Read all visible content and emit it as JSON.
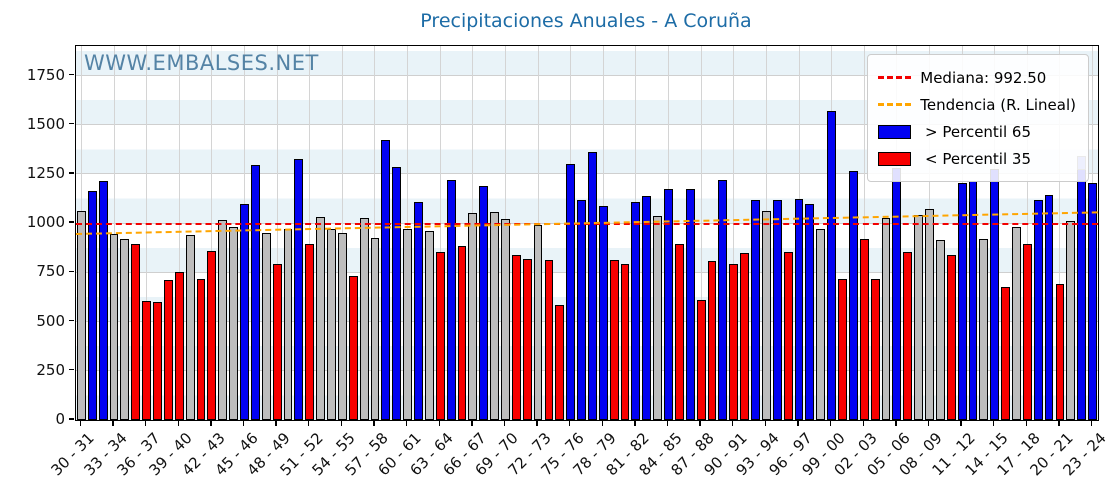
{
  "title": "Precipitaciones Anuales - A Coruña",
  "watermark": "WWW.EMBALSES.NET",
  "legend": {
    "median_label": "Mediana: 992.50",
    "trend_label": "Tendencia (R. Lineal)",
    "above_label": " > Percentil 65",
    "below_label": " < Percentil 35"
  },
  "chart_data": {
    "type": "bar",
    "title": "Precipitaciones Anuales - A Coruña",
    "ylabel": "",
    "xlabel": "",
    "ylim": [
      0,
      1900
    ],
    "yticks": [
      0,
      250,
      500,
      750,
      1000,
      1250,
      1500,
      1750
    ],
    "x_tick_label_step": 3,
    "grid": true,
    "legend_position": "top-right",
    "median": 992.5,
    "trend_linear": {
      "start_value": 940,
      "end_value": 1050
    },
    "colors": {
      "above": "#0202f2",
      "below": "#f80000",
      "mid": "#bdbdbd",
      "median_line": "#f20000",
      "trend_line": "#ffa500",
      "partial_cap": "#6b79e8",
      "title": "#1d6ca6",
      "watermark": "#3a6e96"
    },
    "series_legend": {
      "above": "> Percentil 65",
      "below": "< Percentil 35"
    },
    "partial_bar": {
      "label": "22 - 23",
      "solid_to": 1275
    },
    "bars": [
      [
        "30 - 31",
        1060,
        "mid"
      ],
      [
        "31 - 32",
        1165,
        "above"
      ],
      [
        "32 - 33",
        1215,
        "above"
      ],
      [
        "33 - 34",
        945,
        "mid"
      ],
      [
        "34 - 35",
        920,
        "mid"
      ],
      [
        "35 - 36",
        895,
        "below"
      ],
      [
        "36 - 37",
        605,
        "below"
      ],
      [
        "37 - 38",
        600,
        "below"
      ],
      [
        "38 - 39",
        710,
        "below"
      ],
      [
        "39 - 40",
        750,
        "below"
      ],
      [
        "40 - 41",
        940,
        "mid"
      ],
      [
        "41 - 42",
        715,
        "below"
      ],
      [
        "42 - 43",
        860,
        "below"
      ],
      [
        "43 - 44",
        1015,
        "mid"
      ],
      [
        "44 - 45",
        980,
        "mid"
      ],
      [
        "45 - 46",
        1095,
        "above"
      ],
      [
        "46 - 47",
        1295,
        "above"
      ],
      [
        "47 - 48",
        950,
        "mid"
      ],
      [
        "48 - 49",
        790,
        "below"
      ],
      [
        "49 - 50",
        970,
        "mid"
      ],
      [
        "50 - 51",
        1325,
        "above"
      ],
      [
        "51 - 52",
        895,
        "below"
      ],
      [
        "52 - 53",
        1030,
        "mid"
      ],
      [
        "53 - 54",
        970,
        "mid"
      ],
      [
        "54 - 55",
        950,
        "mid"
      ],
      [
        "55 - 56",
        730,
        "below"
      ],
      [
        "56 - 57",
        1025,
        "mid"
      ],
      [
        "57 - 58",
        925,
        "mid"
      ],
      [
        "58 - 59",
        1425,
        "above"
      ],
      [
        "59 - 60",
        1285,
        "above"
      ],
      [
        "60 - 61",
        970,
        "mid"
      ],
      [
        "61 - 62",
        1110,
        "above"
      ],
      [
        "62 - 63",
        960,
        "mid"
      ],
      [
        "63 - 64",
        855,
        "below"
      ],
      [
        "64 - 65",
        1220,
        "above"
      ],
      [
        "65 - 66",
        885,
        "below"
      ],
      [
        "66 - 67",
        1050,
        "mid"
      ],
      [
        "67 - 68",
        1190,
        "above"
      ],
      [
        "68 - 69",
        1055,
        "mid"
      ],
      [
        "69 - 70",
        1020,
        "mid"
      ],
      [
        "70 - 71",
        840,
        "below"
      ],
      [
        "71 - 72",
        820,
        "below"
      ],
      [
        "72 - 73",
        990,
        "mid"
      ],
      [
        "73 - 74",
        815,
        "below"
      ],
      [
        "74 - 75",
        585,
        "below"
      ],
      [
        "75 - 76",
        1300,
        "above"
      ],
      [
        "76 - 77",
        1120,
        "above"
      ],
      [
        "77 - 78",
        1360,
        "above"
      ],
      [
        "78 - 79",
        1085,
        "above"
      ],
      [
        "79 - 80",
        815,
        "below"
      ],
      [
        "80 - 81",
        795,
        "below"
      ],
      [
        "81 - 82",
        1110,
        "above"
      ],
      [
        "82 - 83",
        1140,
        "above"
      ],
      [
        "83 - 84",
        1035,
        "mid"
      ],
      [
        "84 - 85",
        1175,
        "above"
      ],
      [
        "85 - 86",
        895,
        "below"
      ],
      [
        "86 - 87",
        1175,
        "above"
      ],
      [
        "87 - 88",
        610,
        "below"
      ],
      [
        "88 - 89",
        810,
        "below"
      ],
      [
        "89 - 90",
        1220,
        "above"
      ],
      [
        "90 - 91",
        790,
        "below"
      ],
      [
        "91 - 92",
        850,
        "below"
      ],
      [
        "92 - 93",
        1120,
        "above"
      ],
      [
        "93 - 94",
        1060,
        "mid"
      ],
      [
        "94 - 95",
        1120,
        "above"
      ],
      [
        "95 - 96",
        855,
        "below"
      ],
      [
        "96 - 97",
        1125,
        "above"
      ],
      [
        "97 - 98",
        1095,
        "above"
      ],
      [
        "98 - 99",
        970,
        "mid"
      ],
      [
        "99 - 00",
        1570,
        "above"
      ],
      [
        "00 - 01",
        715,
        "below"
      ],
      [
        "01 - 02",
        1265,
        "above"
      ],
      [
        "02 - 03",
        920,
        "below"
      ],
      [
        "03 - 04",
        715,
        "below"
      ],
      [
        "04 - 05",
        1025,
        "mid"
      ],
      [
        "05 - 06",
        1280,
        "above"
      ],
      [
        "06 - 07",
        855,
        "below"
      ],
      [
        "07 - 08",
        1040,
        "mid"
      ],
      [
        "08 - 09",
        1070,
        "mid"
      ],
      [
        "09 - 10",
        915,
        "mid"
      ],
      [
        "10 - 11",
        840,
        "below"
      ],
      [
        "11 - 12",
        1205,
        "above"
      ],
      [
        "12 - 13",
        1215,
        "above"
      ],
      [
        "13 - 14",
        920,
        "mid"
      ],
      [
        "14 - 15",
        1275,
        "above"
      ],
      [
        "15 - 16",
        675,
        "below"
      ],
      [
        "16 - 17",
        980,
        "mid"
      ],
      [
        "17 - 18",
        895,
        "below"
      ],
      [
        "18 - 19",
        1120,
        "above"
      ],
      [
        "19 - 20",
        1145,
        "above"
      ],
      [
        "20 - 21",
        690,
        "below"
      ],
      [
        "21 - 22",
        1010,
        "mid"
      ],
      [
        "22 - 23",
        1340,
        "above"
      ],
      [
        "23 - 24",
        1205,
        "above"
      ]
    ]
  }
}
